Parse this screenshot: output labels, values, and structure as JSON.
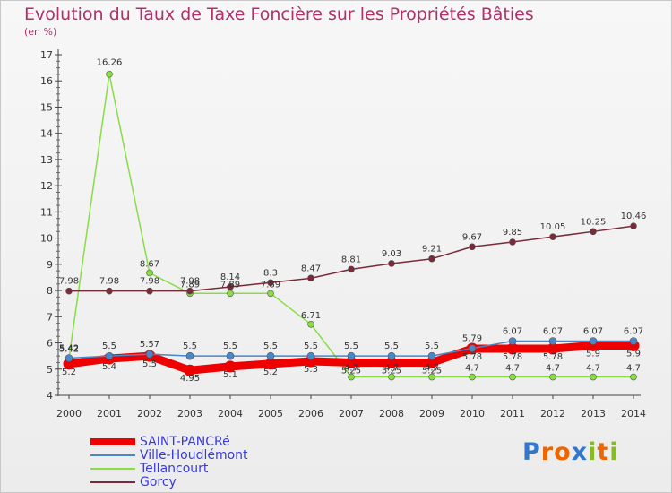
{
  "chart_data": {
    "type": "line",
    "title": "Evolution du Taux de Taxe Foncière sur les Propriétés Bâties",
    "unit_label": "(en %)",
    "xlabel": "",
    "ylabel": "(en %)",
    "x": [
      "2000",
      "2001",
      "2002",
      "2003",
      "2004",
      "2005",
      "2006",
      "2007",
      "2008",
      "2009",
      "2010",
      "2011",
      "2012",
      "2013",
      "2014"
    ],
    "ylim": [
      4,
      17
    ],
    "yticks": [
      "4",
      "5",
      "6",
      "7",
      "8",
      "9",
      "10",
      "11",
      "12",
      "13",
      "14",
      "15",
      "16",
      "17"
    ],
    "grid": false,
    "legend_position": "bottom-left",
    "series": [
      {
        "name": "SAINT-PANCRé",
        "color": "#ee0000",
        "values": [
          5.2,
          5.4,
          5.5,
          4.95,
          5.1,
          5.2,
          5.3,
          5.25,
          5.25,
          5.25,
          5.78,
          5.78,
          5.78,
          5.9,
          5.9
        ],
        "labels": [
          "5.2",
          "5.4",
          "5.5",
          "4.95",
          "5.1",
          "5.2",
          "5.3",
          "5.25",
          "5.25",
          "5.25",
          "5.78",
          "5.78",
          "5.78",
          "5.9",
          "5.9"
        ]
      },
      {
        "name": "Ville-Houdlémont",
        "color": "#4a86c8",
        "values": [
          5.42,
          5.5,
          5.57,
          5.5,
          5.5,
          5.5,
          5.5,
          5.5,
          5.5,
          5.5,
          5.79,
          6.07,
          6.07,
          6.07,
          6.07
        ],
        "labels": [
          "5.42",
          "5.5",
          "5.57",
          "5.5",
          "5.5",
          "5.5",
          "5.5",
          "5.5",
          "5.5",
          "5.5",
          "5.79",
          "6.07",
          "6.07",
          "6.07",
          "6.07"
        ]
      },
      {
        "name": "Tellancourt",
        "color": "#88dd44",
        "values": [
          5.42,
          16.26,
          8.67,
          7.89,
          7.89,
          7.89,
          6.71,
          4.7,
          4.7,
          4.7,
          4.7,
          4.7,
          4.7,
          4.7,
          4.7
        ],
        "labels": [
          "5.42",
          "16.26",
          "8.67",
          "7.89",
          "7.89",
          "7.89",
          "6.71",
          "4.7",
          "4.7",
          "4.7",
          "4.7",
          "4.7",
          "4.7",
          "4.7",
          "4.7"
        ]
      },
      {
        "name": "Gorcy",
        "color": "#7a2a38",
        "values": [
          7.98,
          7.98,
          7.98,
          7.98,
          8.14,
          8.3,
          8.47,
          8.81,
          9.03,
          9.21,
          9.67,
          9.85,
          10.05,
          10.25,
          10.46
        ],
        "labels": [
          "7.98",
          "7.98",
          "7.98",
          "7.98",
          "8.14",
          "8.3",
          "8.47",
          "8.81",
          "9.03",
          "9.21",
          "9.67",
          "9.85",
          "10.05",
          "10.25",
          "10.46"
        ]
      }
    ]
  },
  "logo": {
    "letters": [
      "P",
      "r",
      "o",
      "x",
      "i",
      "t",
      "i"
    ],
    "colors": [
      "#3377cc",
      "#ee6600",
      "#ee6600",
      "#3377cc",
      "#88bb22",
      "#ee6600",
      "#88bb22"
    ]
  }
}
